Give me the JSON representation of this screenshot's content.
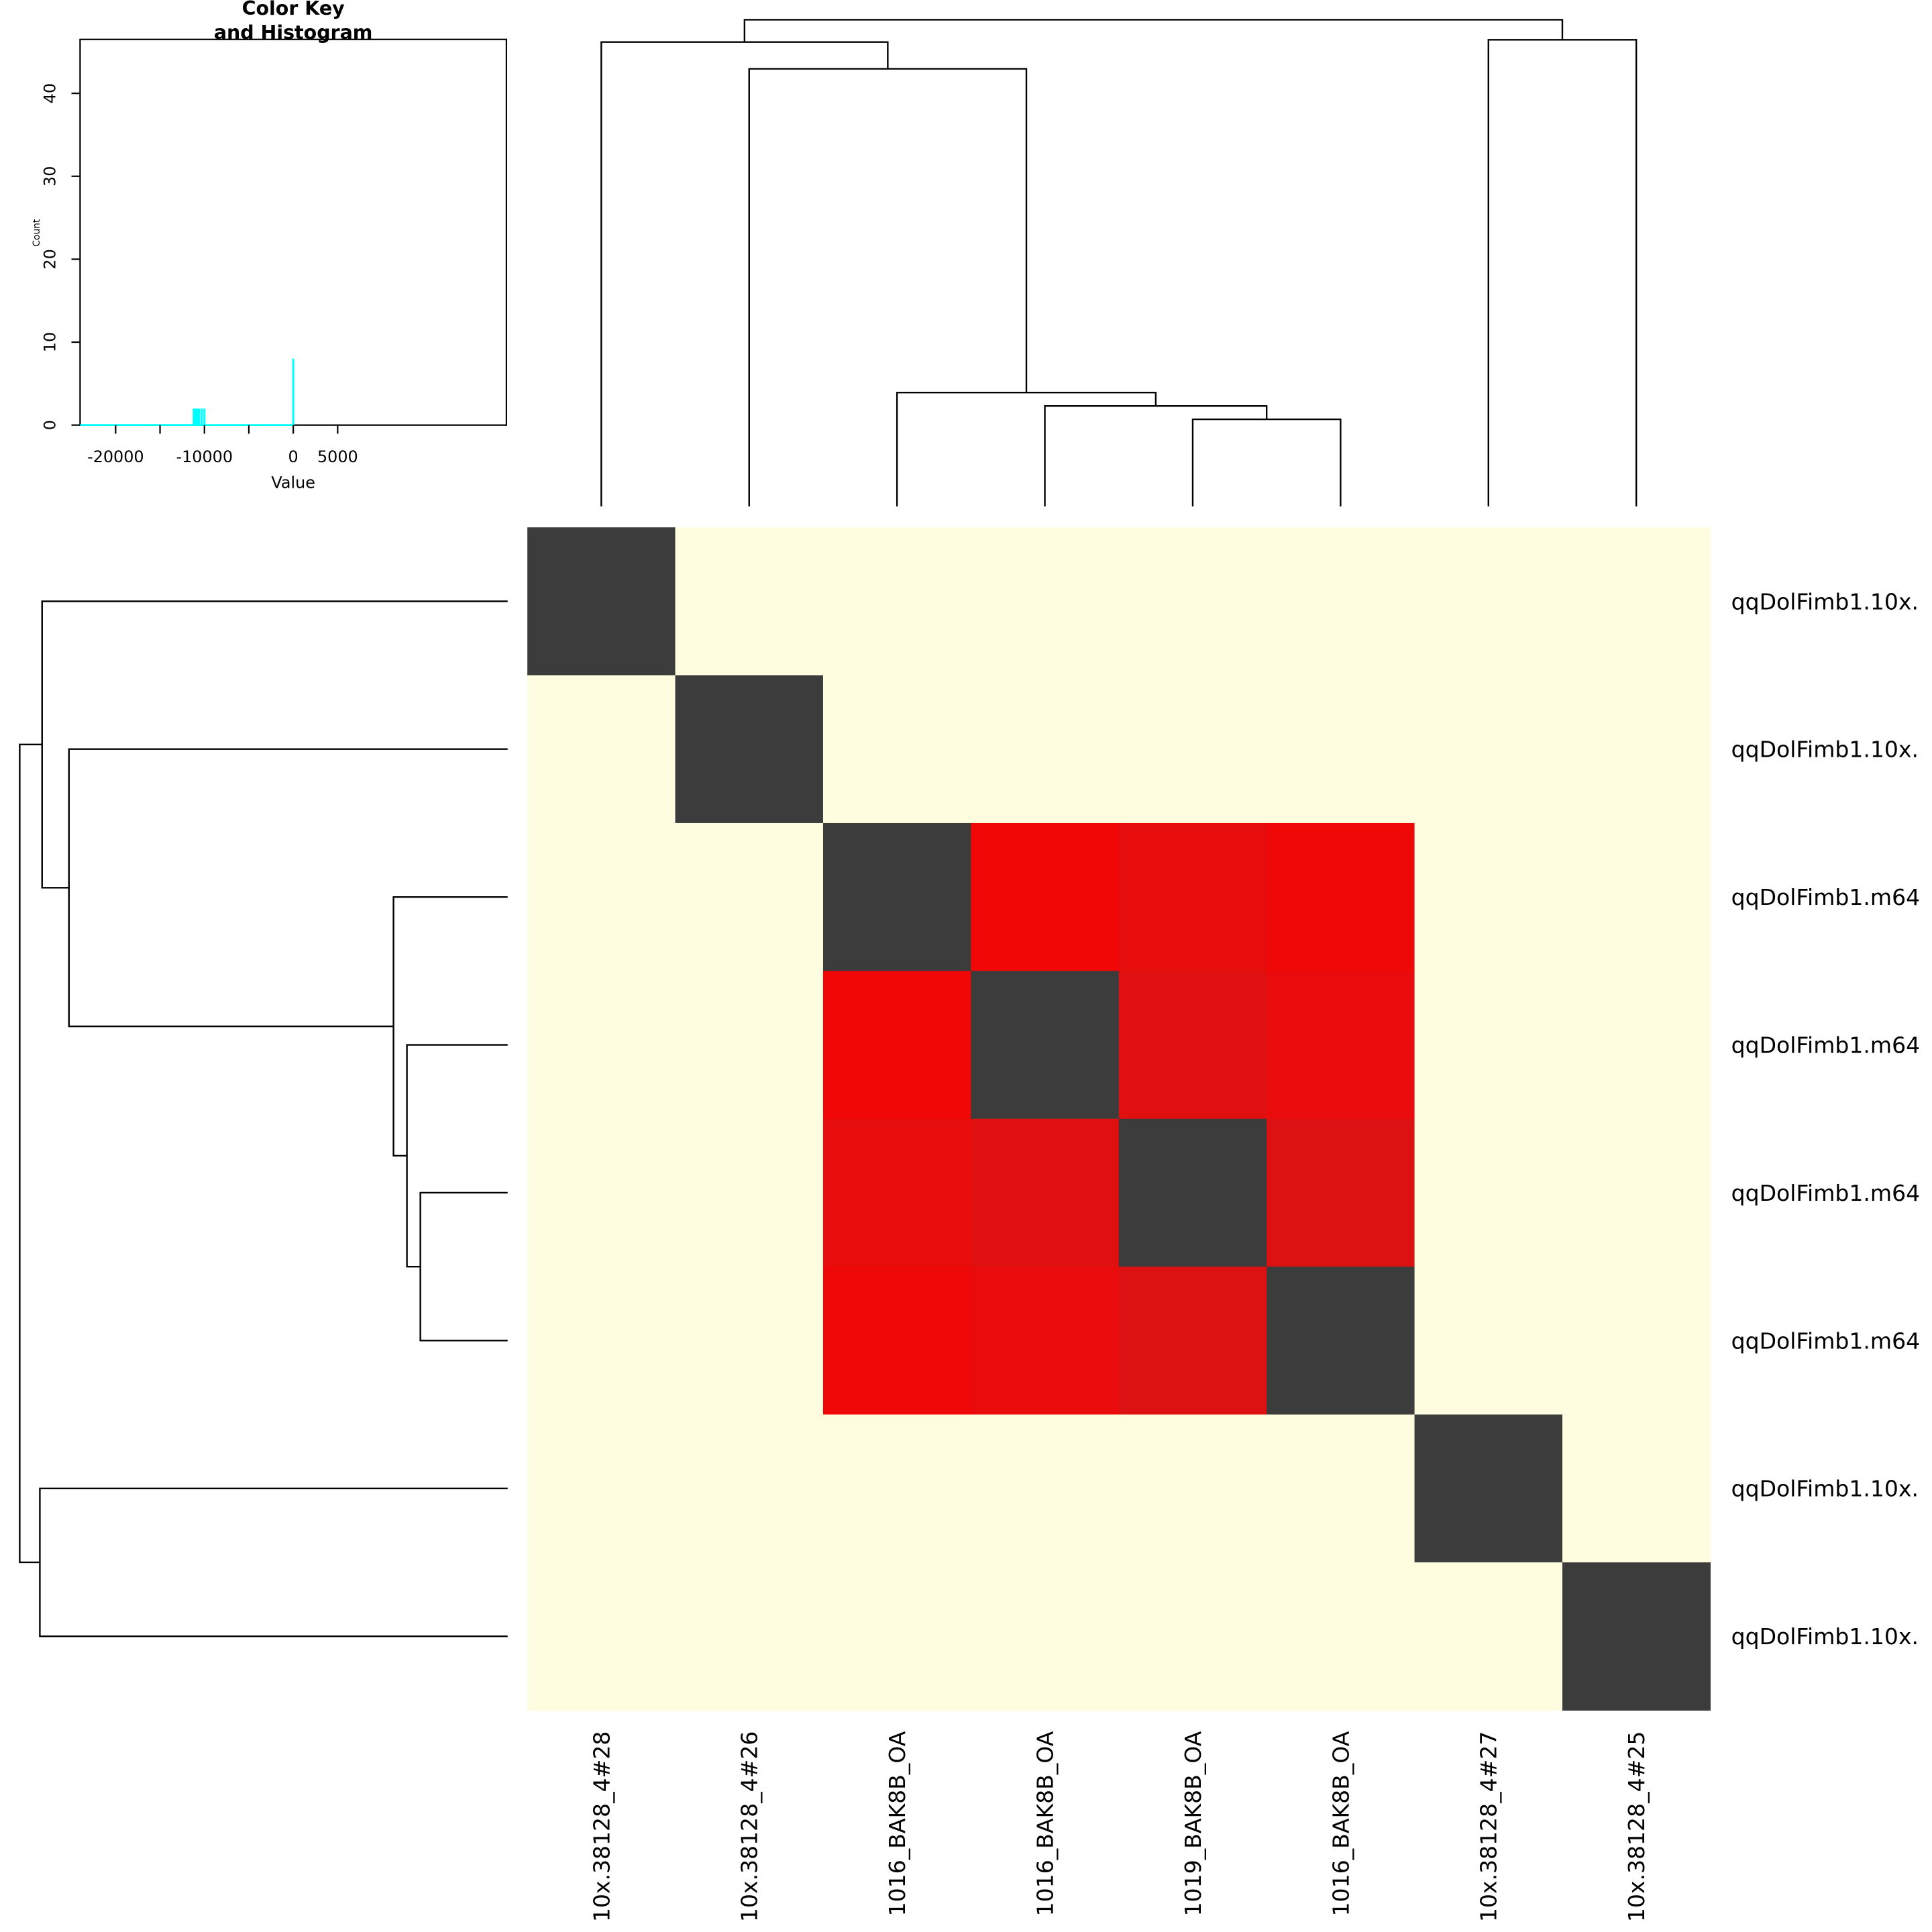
{
  "chart_data": [
    {
      "type": "bar",
      "title_lines": [
        "Color Key",
        "and Histogram"
      ],
      "xlabel": "Value",
      "ylabel": "Count",
      "xlim": [
        -24000,
        24000
      ],
      "ylim": [
        0,
        46.5
      ],
      "xticks": [
        -20000,
        -15000,
        -10000,
        -5000,
        0,
        5000
      ],
      "xtick_labels": [
        "-20000",
        "",
        "-10000",
        "",
        "0",
        "5000"
      ],
      "yticks": [
        0,
        10,
        20,
        30,
        40
      ],
      "ytick_labels": [
        "0",
        "10",
        "20",
        "30",
        "40"
      ],
      "bar_color": "#00ffff",
      "bars": [
        {
          "x": -11200,
          "count": 2
        },
        {
          "x": -11000,
          "count": 2
        },
        {
          "x": -10800,
          "count": 2
        },
        {
          "x": -10600,
          "count": 2
        },
        {
          "x": -10300,
          "count": 2
        },
        {
          "x": -10000,
          "count": 2
        },
        {
          "x": 0,
          "count": 8
        }
      ],
      "baseline_range": [
        -24000,
        0
      ]
    },
    {
      "type": "heatmap",
      "row_labels": [
        "qqDolFimb1.10x.",
        "qqDolFimb1.10x.",
        "qqDolFimb1.m64",
        "qqDolFimb1.m64",
        "qqDolFimb1.m64",
        "qqDolFimb1.m64",
        "qqDolFimb1.10x.",
        "qqDolFimb1.10x."
      ],
      "col_labels": [
        "10x.38128_4#28",
        "10x.38128_4#26",
        "1016_BAK8B_OA",
        "1016_BAK8B_OA",
        "1019_BAK8B_OA",
        "1016_BAK8B_OA",
        "10x.38128_4#27",
        "10x.38128_4#25"
      ],
      "cell_colors": [
        [
          "#3c3c3c",
          "#fffde0",
          "#fffde0",
          "#fffde0",
          "#fffde0",
          "#fffde0",
          "#fffde0",
          "#fffde0"
        ],
        [
          "#fffde0",
          "#3c3c3c",
          "#fffde0",
          "#fffde0",
          "#fffde0",
          "#fffde0",
          "#fffde0",
          "#fffde0"
        ],
        [
          "#fffde0",
          "#fffde0",
          "#3c3c3c",
          "#f20707",
          "#e70d0d",
          "#ef0808",
          "#fffde0",
          "#fffde0"
        ],
        [
          "#fffde0",
          "#fffde0",
          "#f20707",
          "#3c3c3c",
          "#e01010",
          "#ea0c0c",
          "#fffde0",
          "#fffde0"
        ],
        [
          "#fffde0",
          "#fffde0",
          "#e70d0d",
          "#e01010",
          "#3c3c3c",
          "#dc1212",
          "#fffde0",
          "#fffde0"
        ],
        [
          "#fffde0",
          "#fffde0",
          "#ef0808",
          "#ea0c0c",
          "#dc1212",
          "#3c3c3c",
          "#fffde0",
          "#fffde0"
        ],
        [
          "#fffde0",
          "#fffde0",
          "#fffde0",
          "#fffde0",
          "#fffde0",
          "#fffde0",
          "#3c3c3c",
          "#fffde0"
        ],
        [
          "#fffde0",
          "#fffde0",
          "#fffde0",
          "#fffde0",
          "#fffde0",
          "#fffde0",
          "#fffde0",
          "#3c3c3c"
        ]
      ],
      "dendrogram": {
        "merges": [
          {
            "a": 4,
            "b": 5,
            "h": 1.95
          },
          {
            "a": 3,
            "b": 8,
            "h": 2.25
          },
          {
            "a": 2,
            "b": 9,
            "h": 2.55
          },
          {
            "a": 6,
            "b": 7,
            "h": 10.45
          },
          {
            "a": 1,
            "b": 10,
            "h": 9.8
          },
          {
            "a": 0,
            "b": 12,
            "h": 10.4
          },
          {
            "a": 13,
            "b": 11,
            "h": 10.9
          }
        ],
        "max_height": 10.9
      }
    }
  ]
}
